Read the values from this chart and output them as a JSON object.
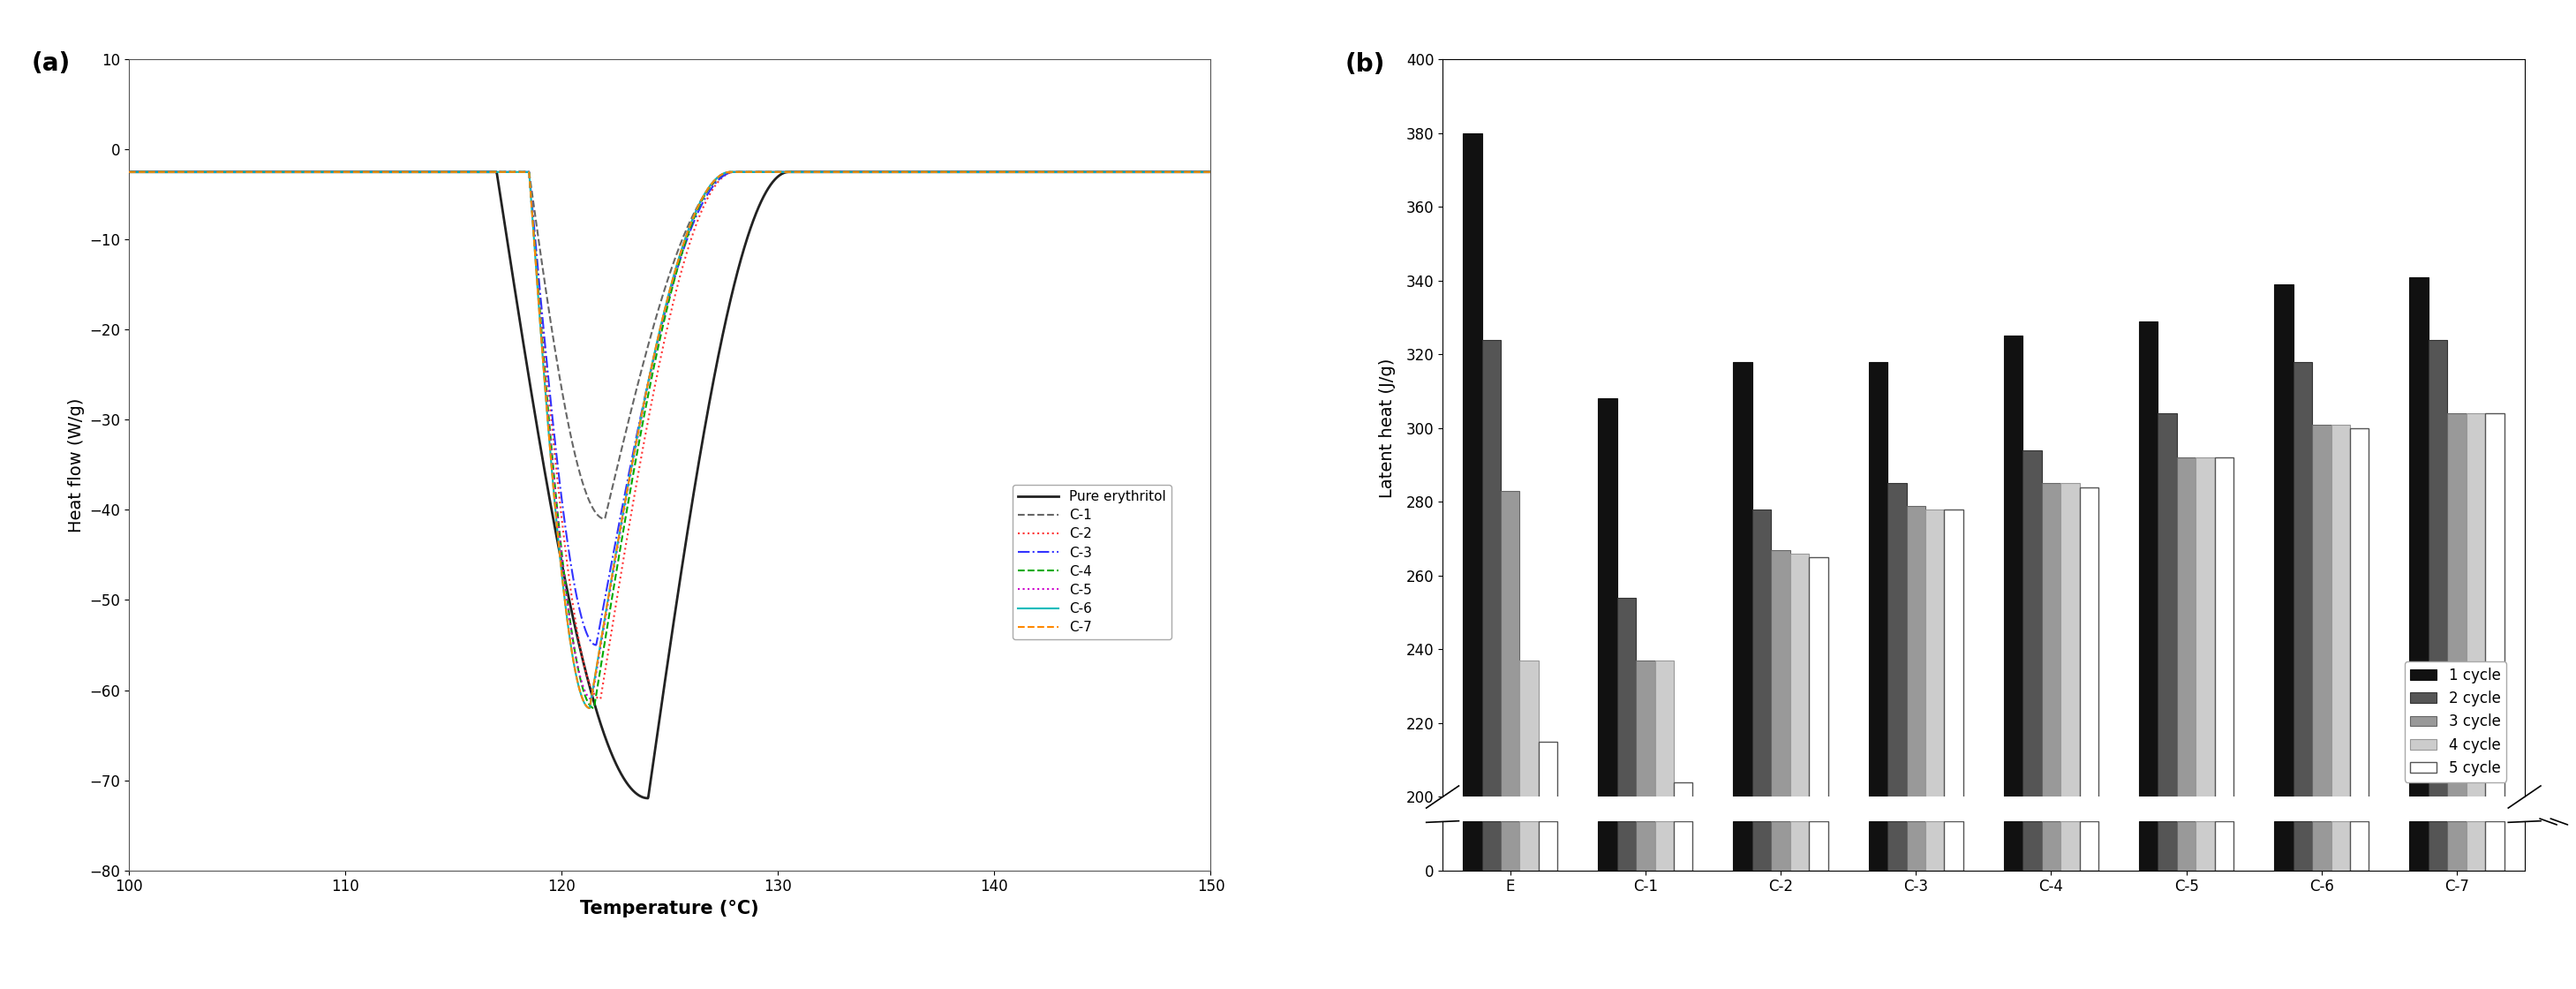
{
  "panel_a": {
    "xlabel": "Temperature (°C)",
    "ylabel": "Heat flow (W/g)",
    "xlim": [
      100,
      150
    ],
    "ylim": [
      -80,
      10
    ],
    "yticks": [
      10,
      0,
      -10,
      -20,
      -30,
      -40,
      -50,
      -60,
      -70,
      -80
    ],
    "xticks": [
      100,
      110,
      120,
      130,
      140,
      150
    ],
    "curve_params": [
      {
        "name": "Pure erythritol",
        "color": "#222222",
        "linestyle": "solid",
        "linewidth": 2.0,
        "peak_temp": 124.0,
        "peak_val": -72,
        "onset": 117.0,
        "end": 130.5,
        "baseline": -2.5
      },
      {
        "name": "C-1",
        "color": "#666666",
        "linestyle": "dashed",
        "linewidth": 1.5,
        "peak_temp": 122.0,
        "peak_val": -41,
        "onset": 118.5,
        "end": 128.0,
        "baseline": -2.5
      },
      {
        "name": "C-2",
        "color": "#ff3333",
        "linestyle": "dotted",
        "linewidth": 1.5,
        "peak_temp": 121.8,
        "peak_val": -61,
        "onset": 118.5,
        "end": 128.0,
        "baseline": -2.5
      },
      {
        "name": "C-3",
        "color": "#3333ff",
        "linestyle": "dashdot",
        "linewidth": 1.5,
        "peak_temp": 121.6,
        "peak_val": -55,
        "onset": 118.5,
        "end": 128.0,
        "baseline": -2.5
      },
      {
        "name": "C-4",
        "color": "#00aa00",
        "linestyle": "dashed",
        "linewidth": 1.5,
        "peak_temp": 121.5,
        "peak_val": -62,
        "onset": 118.5,
        "end": 127.8,
        "baseline": -2.5
      },
      {
        "name": "C-5",
        "color": "#cc00cc",
        "linestyle": "dotted",
        "linewidth": 1.5,
        "peak_temp": 121.4,
        "peak_val": -61,
        "onset": 118.5,
        "end": 127.8,
        "baseline": -2.5
      },
      {
        "name": "C-6",
        "color": "#00bbbb",
        "linestyle": "solid",
        "linewidth": 1.5,
        "peak_temp": 121.3,
        "peak_val": -62,
        "onset": 118.5,
        "end": 127.8,
        "baseline": -2.5
      },
      {
        "name": "C-7",
        "color": "#ff8800",
        "linestyle": "dashed",
        "linewidth": 1.5,
        "peak_temp": 121.3,
        "peak_val": -62,
        "onset": 118.5,
        "end": 127.8,
        "baseline": -2.5
      }
    ]
  },
  "panel_b": {
    "ylabel": "Latent heat (J/g)",
    "categories": [
      "E",
      "C-1",
      "C-2",
      "C-3",
      "C-4",
      "C-5",
      "C-6",
      "C-7"
    ],
    "cycles": [
      "1 cycle",
      "2 cycle",
      "3 cycle",
      "4 cycle",
      "5 cycle"
    ],
    "bar_colors": [
      "#111111",
      "#555555",
      "#999999",
      "#cccccc",
      "#ffffff"
    ],
    "bar_edgecolors": [
      "#111111",
      "#333333",
      "#666666",
      "#999999",
      "#555555"
    ],
    "data": {
      "1 cycle": [
        380,
        308,
        318,
        318,
        325,
        329,
        339,
        341
      ],
      "2 cycle": [
        324,
        254,
        278,
        285,
        294,
        304,
        318,
        324
      ],
      "3 cycle": [
        283,
        237,
        267,
        279,
        285,
        292,
        301,
        304
      ],
      "4 cycle": [
        237,
        237,
        266,
        278,
        285,
        292,
        301,
        304
      ],
      "5 cycle": [
        215,
        204,
        265,
        278,
        284,
        292,
        300,
        304
      ]
    },
    "ylim_bottom": 200,
    "ylim_top": 400,
    "yticks_top": [
      200,
      220,
      240,
      260,
      280,
      300,
      320,
      340,
      360,
      380,
      400
    ],
    "ylim_bottom2": 0,
    "ylim_top2": 15,
    "yticks_bottom": [
      0
    ]
  }
}
